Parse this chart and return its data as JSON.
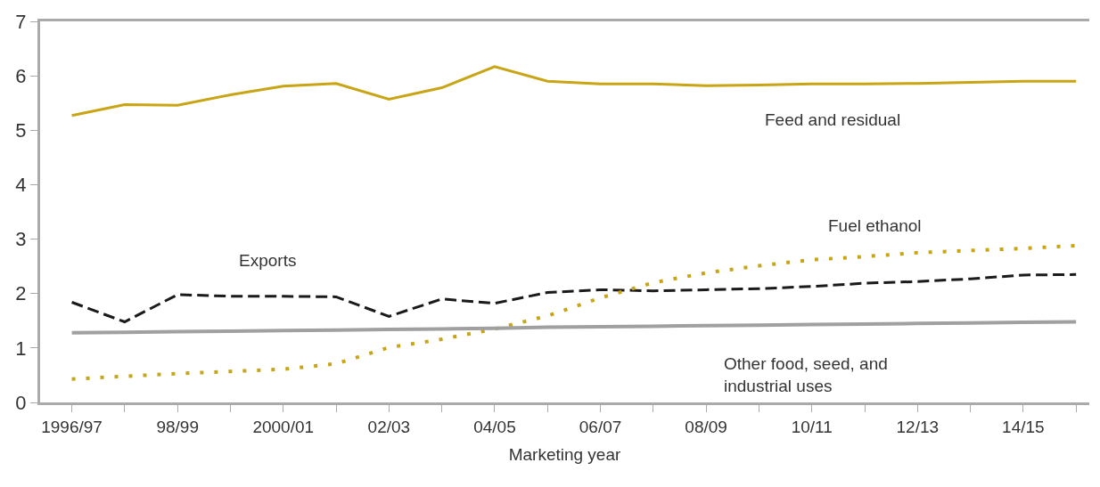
{
  "chart_data": {
    "type": "line",
    "xlabel": "Marketing year",
    "categories": [
      "1996/97",
      null,
      "98/99",
      null,
      "2000/01",
      null,
      "02/03",
      null,
      "04/05",
      null,
      "06/07",
      null,
      "08/09",
      null,
      "10/11",
      null,
      "12/13",
      null,
      "14/15",
      null
    ],
    "ylim": [
      0,
      7
    ],
    "yticks": [
      0,
      1,
      2,
      3,
      4,
      5,
      6,
      7
    ],
    "legend": false,
    "marker": "none",
    "series": [
      {
        "name": "Feed and residual",
        "color": "#c9a414",
        "line_style": "solid",
        "values": [
          5.27,
          5.47,
          5.46,
          5.65,
          5.81,
          5.86,
          5.57,
          5.78,
          6.17,
          5.9,
          5.85,
          5.85,
          5.82,
          5.83,
          5.85,
          5.85,
          5.86,
          5.88,
          5.9,
          5.9
        ]
      },
      {
        "name": "Exports",
        "color": "#1a1a1a",
        "line_style": "dashed",
        "values": [
          1.84,
          1.48,
          1.98,
          1.95,
          1.95,
          1.94,
          1.58,
          1.9,
          1.82,
          2.02,
          2.07,
          2.05,
          2.07,
          2.09,
          2.13,
          2.19,
          2.22,
          2.27,
          2.34,
          2.35
        ]
      },
      {
        "name": "Fuel ethanol",
        "color": "#c9a414",
        "line_style": "dotted",
        "values": [
          0.43,
          0.48,
          0.53,
          0.57,
          0.61,
          0.71,
          1.01,
          1.16,
          1.35,
          1.59,
          1.92,
          2.2,
          2.38,
          2.51,
          2.62,
          2.68,
          2.75,
          2.79,
          2.83,
          2.88
        ]
      },
      {
        "name": "Other food, seed, and industrial uses",
        "color": "#a0a0a0",
        "line_style": "solid",
        "values": [
          1.28,
          1.29,
          1.3,
          1.31,
          1.32,
          1.33,
          1.34,
          1.35,
          1.36,
          1.38,
          1.39,
          1.4,
          1.41,
          1.42,
          1.43,
          1.44,
          1.45,
          1.46,
          1.47,
          1.48
        ]
      }
    ]
  }
}
